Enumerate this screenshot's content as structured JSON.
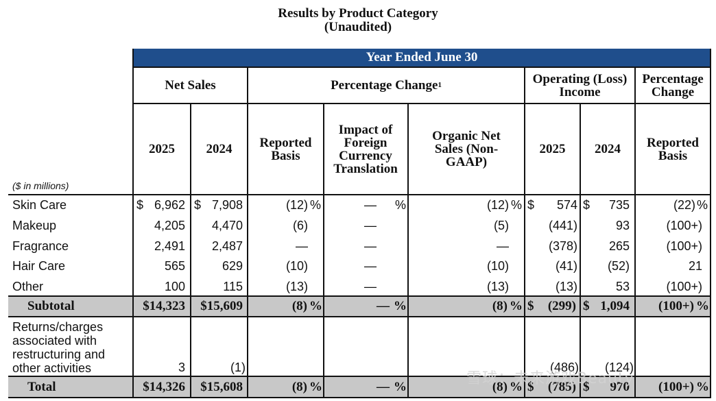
{
  "title": {
    "line1": "Results by Product Category",
    "line2": "(Unaudited)"
  },
  "banner": "Year Ended June 30",
  "group_headers": {
    "net_sales": "Net Sales",
    "pct_change": "Percentage Change",
    "pct_change_sup": "1",
    "op_income": "Operating (Loss) Income",
    "pct_change2": "Percentage Change"
  },
  "col_headers": {
    "y2025": "2025",
    "y2024": "2024",
    "reported": "Reported Basis",
    "fx": "Impact of Foreign Currency Translation",
    "organic": "Organic Net Sales (Non-GAAP)",
    "oi2025": "2025",
    "oi2024": "2024",
    "reported2": "Reported Basis"
  },
  "units": "($ in millions)",
  "rows": [
    {
      "label": "Skin Care",
      "ns25": "6,962",
      "ns24": "7,908",
      "rep": "(12)",
      "fx": "—",
      "org": "(12)",
      "oi25": "574",
      "oi24": "735",
      "chg": "(22)"
    },
    {
      "label": "Makeup",
      "ns25": "4,205",
      "ns24": "4,470",
      "rep": "(6)",
      "fx": "—",
      "org": "(5)",
      "oi25": "(441)",
      "oi24": "93",
      "chg": "(100+)"
    },
    {
      "label": "Fragrance",
      "ns25": "2,491",
      "ns24": "2,487",
      "rep": "—",
      "fx": "—",
      "org": "—",
      "oi25": "(378)",
      "oi24": "265",
      "chg": "(100+)"
    },
    {
      "label": "Hair Care",
      "ns25": "565",
      "ns24": "629",
      "rep": "(10)",
      "fx": "—",
      "org": "(10)",
      "oi25": "(41)",
      "oi24": "(52)",
      "chg": "21"
    },
    {
      "label": "Other",
      "ns25": "100",
      "ns24": "115",
      "rep": "(13)",
      "fx": "—",
      "org": "(13)",
      "oi25": "(13)",
      "oi24": "53",
      "chg": "(100+)"
    }
  ],
  "subtotal": {
    "label": "Subtotal",
    "ns25": "$14,323",
    "ns24": "$15,609",
    "rep": "(8)",
    "fx": "—",
    "org": "(8)",
    "oi25": "(299)",
    "oi24": "1,094",
    "chg": "(100+)"
  },
  "returns": {
    "label": "Returns/charges associated with restructuring and other activities",
    "ns25": "3",
    "ns24": "(1)",
    "oi25": "(486)",
    "oi24": "(124)"
  },
  "total": {
    "label": "Total",
    "ns25": "$14,326",
    "ns24": "$15,608",
    "rep": "(8)",
    "fx": "—",
    "org": "(8)",
    "oi25": "(785)",
    "oi24": "970",
    "chg": "(100+)"
  },
  "symbols": {
    "dollar": "$",
    "pct": "%"
  },
  "watermark": "雪球：未来游戏Beauty",
  "colors": {
    "banner": "#1f4e8c",
    "shade": "#c8c8c8"
  }
}
